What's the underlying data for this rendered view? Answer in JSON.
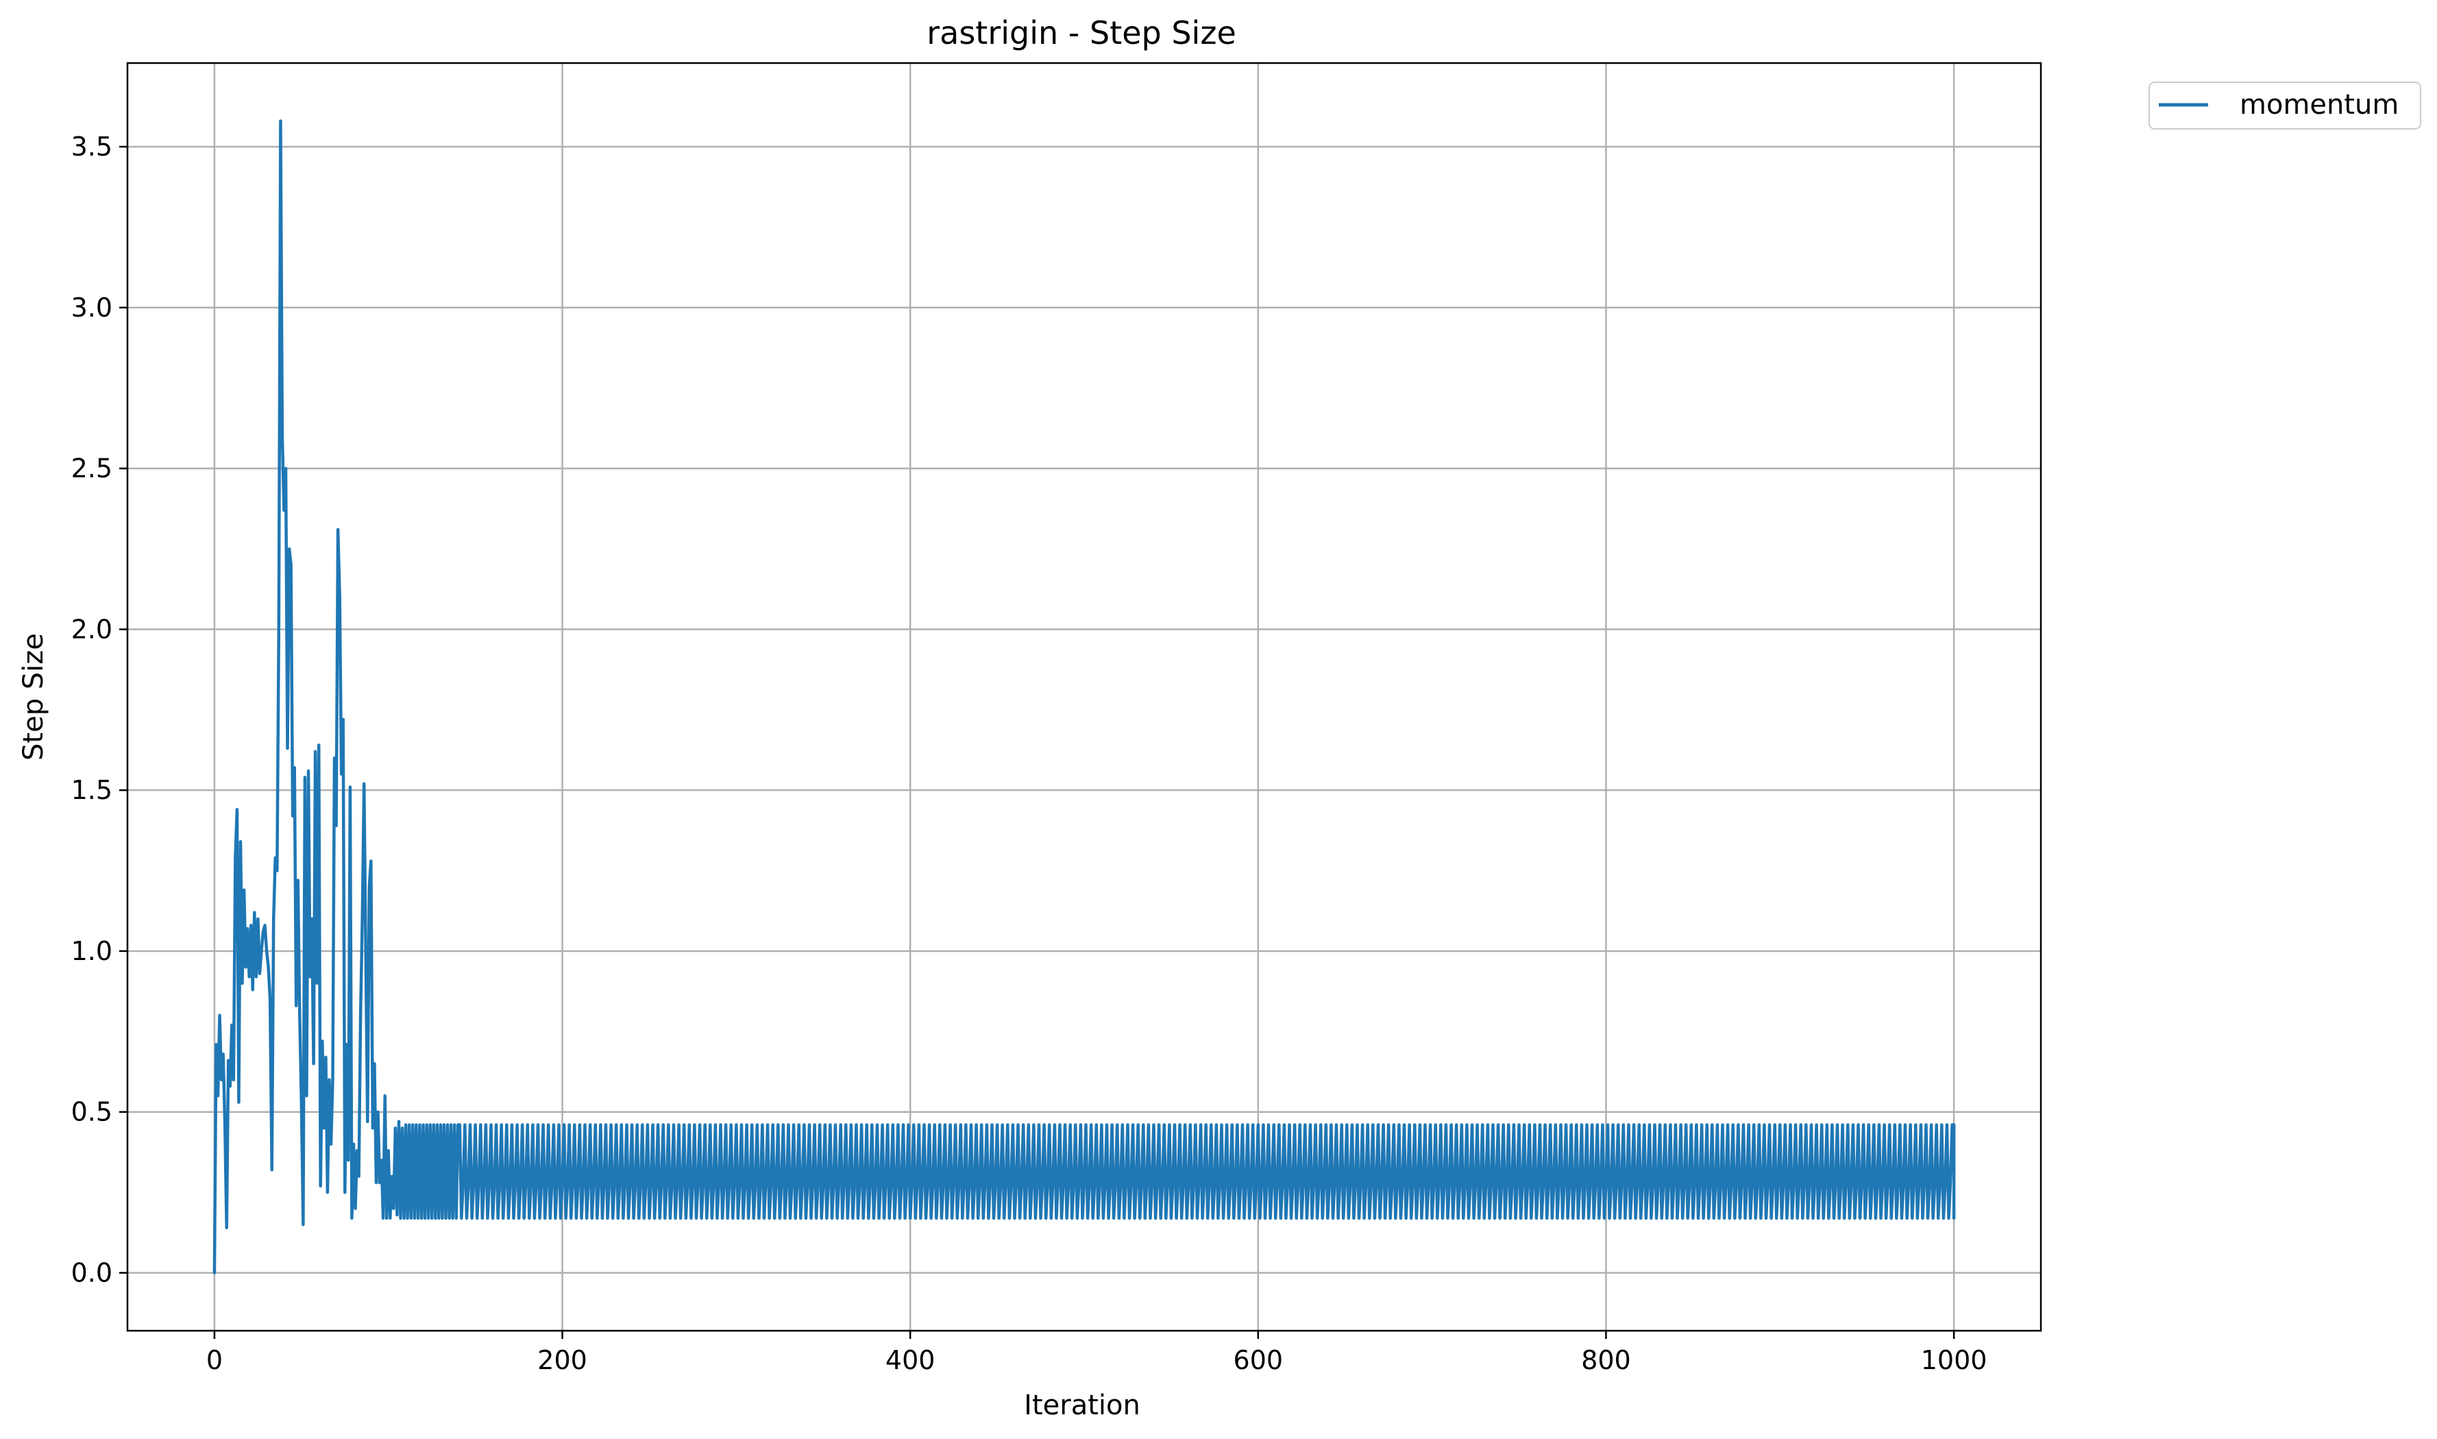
{
  "chart_data": {
    "type": "line",
    "title": "rastrigin - Step Size",
    "xlabel": "Iteration",
    "ylabel": "Step Size",
    "xlim": [
      -50,
      1050
    ],
    "ylim": [
      -0.18,
      3.76
    ],
    "x_ticks": [
      0,
      200,
      400,
      600,
      800,
      1000
    ],
    "x_tick_labels": [
      "0",
      "200",
      "400",
      "600",
      "800",
      "1000"
    ],
    "y_ticks": [
      0.0,
      0.5,
      1.0,
      1.5,
      2.0,
      2.5,
      3.0,
      3.5
    ],
    "y_tick_labels": [
      "0.0",
      "0.5",
      "1.0",
      "1.5",
      "2.0",
      "2.5",
      "3.0",
      "3.5"
    ],
    "grid": true,
    "legend": {
      "position": "outside-top-right",
      "entries": [
        "momentum"
      ]
    },
    "series": [
      {
        "name": "momentum",
        "color": "#1f77b4",
        "x": [
          0,
          1,
          2,
          3,
          4,
          5,
          6,
          7,
          8,
          9,
          10,
          11,
          12,
          13,
          14,
          15,
          16,
          17,
          18,
          19,
          20,
          21,
          22,
          23,
          24,
          25,
          26,
          27,
          28,
          29,
          30,
          31,
          32,
          33,
          34,
          35,
          36,
          37,
          38,
          39,
          40,
          41,
          42,
          43,
          44,
          45,
          46,
          47,
          48,
          49,
          50,
          51,
          52,
          53,
          54,
          55,
          56,
          57,
          58,
          59,
          60,
          61,
          62,
          63,
          64,
          65,
          66,
          67,
          68,
          69,
          70,
          71,
          72,
          73,
          74,
          75,
          76,
          77,
          78,
          79,
          80,
          81,
          82,
          83,
          84,
          85,
          86,
          87,
          88,
          89,
          90,
          91,
          92,
          93,
          94,
          95,
          96,
          97,
          98,
          99,
          100,
          101,
          102,
          103,
          104,
          105,
          106,
          107,
          108,
          109,
          110,
          111,
          112,
          113,
          114,
          115,
          116,
          117,
          118,
          119,
          120,
          121,
          122,
          123,
          124,
          125,
          126,
          127,
          128,
          129,
          130,
          131,
          132,
          133,
          134,
          135,
          136,
          137,
          138,
          139,
          140
        ],
        "y": [
          0.0,
          0.71,
          0.55,
          0.8,
          0.6,
          0.68,
          0.47,
          0.14,
          0.66,
          0.58,
          0.77,
          0.6,
          1.29,
          1.44,
          0.53,
          1.34,
          0.9,
          1.19,
          0.95,
          1.07,
          0.92,
          1.08,
          0.88,
          1.12,
          0.92,
          1.1,
          0.93,
          1.0,
          1.06,
          1.08,
          1.0,
          0.95,
          0.85,
          0.32,
          1.1,
          1.29,
          1.25,
          2.0,
          3.58,
          2.6,
          2.37,
          2.5,
          1.63,
          2.25,
          2.2,
          1.42,
          1.57,
          0.83,
          1.22,
          0.8,
          0.53,
          0.15,
          1.54,
          0.55,
          1.56,
          0.92,
          1.1,
          0.65,
          1.62,
          0.9,
          1.64,
          0.27,
          0.72,
          0.45,
          0.67,
          0.25,
          0.6,
          0.4,
          0.6,
          1.6,
          1.39,
          2.31,
          2.1,
          1.55,
          1.72,
          0.25,
          0.71,
          0.35,
          1.51,
          0.17,
          0.4,
          0.2,
          0.38,
          0.3,
          0.8,
          1.1,
          1.52,
          1.0,
          0.47,
          1.2,
          1.28,
          0.45,
          0.65,
          0.28,
          0.5,
          0.28,
          0.35,
          0.17,
          0.55,
          0.17,
          0.38,
          0.17,
          0.3,
          0.2,
          0.45,
          0.18,
          0.47,
          0.17,
          0.45,
          0.17,
          0.46,
          0.17,
          0.46,
          0.17,
          0.46,
          0.17,
          0.46,
          0.17,
          0.46,
          0.17,
          0.46,
          0.17,
          0.46,
          0.17,
          0.46,
          0.17,
          0.46,
          0.17,
          0.46,
          0.17,
          0.46,
          0.17,
          0.46,
          0.17,
          0.46,
          0.17,
          0.46,
          0.17,
          0.46,
          0.17,
          0.46
        ],
        "continuation": {
          "pattern": "oscillation",
          "x_start": 140,
          "x_end": 1000,
          "period": 3,
          "values": [
            0.46,
            0.17,
            0.28
          ],
          "end_value": 0.17
        }
      }
    ]
  }
}
